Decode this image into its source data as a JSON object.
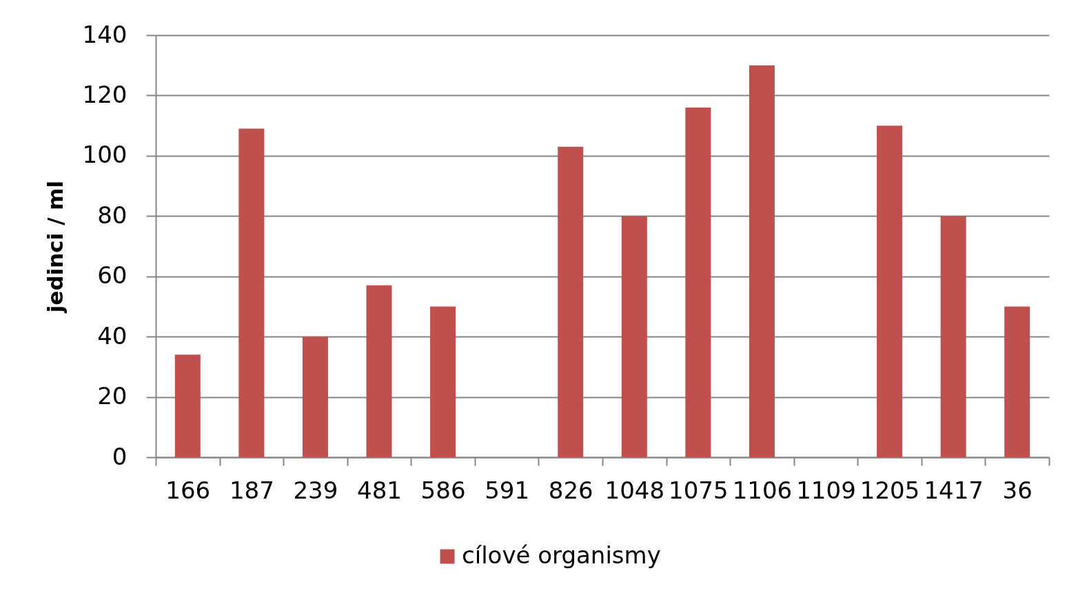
{
  "chart_data": {
    "type": "bar",
    "ylabel": "jedinci / ml",
    "categories": [
      "166",
      "187",
      "239",
      "481",
      "586",
      "591",
      "826",
      "1048",
      "1075",
      "1106",
      "1109",
      "1205",
      "1417",
      "36"
    ],
    "series": [
      {
        "name": "cílové organismy",
        "color": "#c0504d",
        "values": [
          34,
          109,
          40,
          57,
          50,
          null,
          103,
          80,
          116,
          130,
          null,
          110,
          80,
          50
        ]
      }
    ],
    "ylim": [
      0,
      140
    ],
    "yticks": [
      0,
      20,
      40,
      60,
      80,
      100,
      120,
      140
    ],
    "grid": "y",
    "legend": "bottom"
  }
}
